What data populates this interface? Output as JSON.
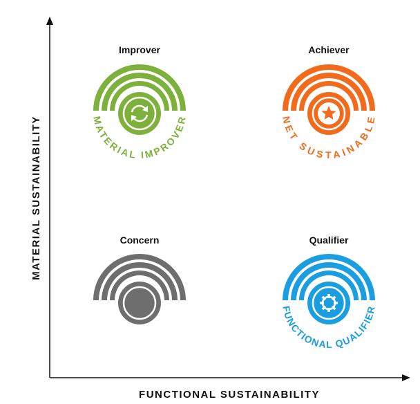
{
  "axes": {
    "x_label": "FUNCTIONAL SUSTAINABILITY",
    "y_label": "MATERIAL SUSTAINABILITY"
  },
  "quadrants": [
    {
      "id": "improver",
      "label": "Improver",
      "badge_text": "MATERIAL IMPROVER",
      "color": "#7db13b",
      "icon": "recycle-arrows-icon"
    },
    {
      "id": "achiever",
      "label": "Achiever",
      "badge_text": "NET SUSTAINABLE",
      "color": "#f26a1b",
      "icon": "star-icon"
    },
    {
      "id": "concern",
      "label": "Concern",
      "badge_text": "",
      "color": "#6e6e6e",
      "icon": "solid-disc-icon"
    },
    {
      "id": "qualifier",
      "label": "Qualifier",
      "badge_text": "FUNCTIONAL QUALIFIER",
      "color": "#1a9ee0",
      "icon": "gear-icon"
    }
  ]
}
